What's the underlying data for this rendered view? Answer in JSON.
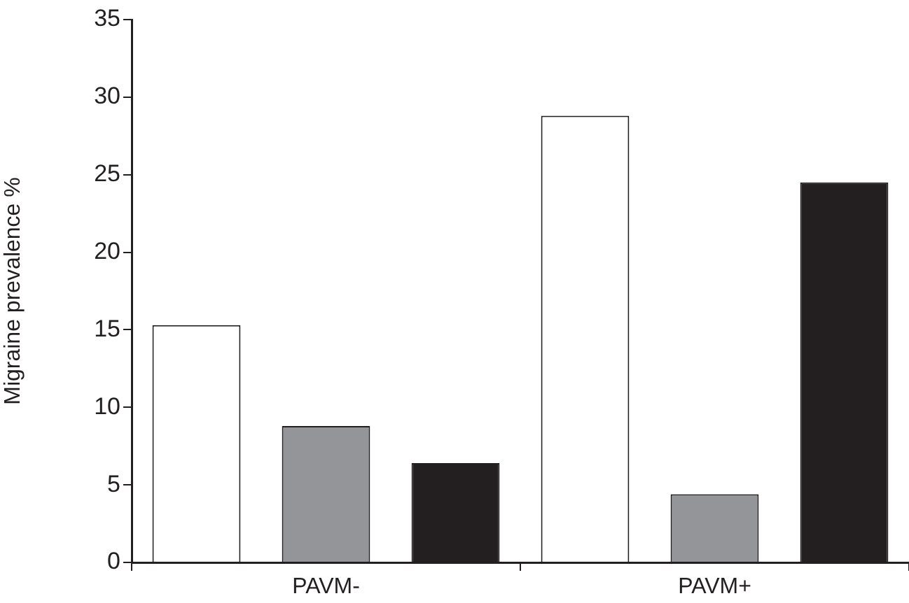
{
  "chart_data": {
    "type": "bar",
    "ylabel": "Migraine prevalence %",
    "categories": [
      "PAVM-",
      "PAVM+"
    ],
    "series": [
      {
        "color": "#ffffff",
        "values": [
          15.3,
          28.8
        ]
      },
      {
        "color": "#939598",
        "values": [
          8.8,
          4.4
        ]
      },
      {
        "color": "#231f20",
        "values": [
          6.4,
          24.5
        ]
      }
    ],
    "ylim": [
      0,
      35
    ],
    "yticks": [
      0,
      5,
      10,
      15,
      20,
      25,
      30,
      35
    ],
    "grid": false,
    "legend": false
  }
}
